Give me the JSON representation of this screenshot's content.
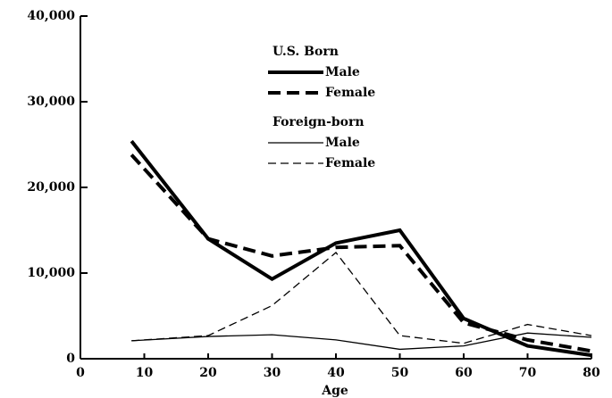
{
  "chart_data": {
    "type": "line",
    "x_label": "Age",
    "x": [
      8,
      20,
      30,
      40,
      50,
      60,
      70,
      80
    ],
    "legend_groups": [
      "U.S. Born",
      "Foreign-born"
    ],
    "series": [
      {
        "name": "Male",
        "group": 0,
        "color": "#000000",
        "width": 4,
        "dash": "none",
        "values": [
          25400,
          14000,
          9300,
          13500,
          15000,
          4700,
          1500,
          400
        ]
      },
      {
        "name": "Female",
        "group": 0,
        "color": "#000000",
        "width": 4,
        "dash": "14 7",
        "values": [
          23800,
          14000,
          12000,
          13000,
          13200,
          4200,
          2200,
          900
        ]
      },
      {
        "name": "Male",
        "group": 1,
        "color": "#000000",
        "width": 1.3,
        "dash": "none",
        "values": [
          2100,
          2600,
          2800,
          2200,
          1100,
          1500,
          3000,
          2500
        ]
      },
      {
        "name": "Female",
        "group": 1,
        "color": "#000000",
        "width": 1.3,
        "dash": "9 5",
        "values": [
          2100,
          2700,
          6200,
          12400,
          2700,
          1800,
          4000,
          2700
        ]
      }
    ],
    "xlim": [
      0,
      80
    ],
    "xticks": [
      0,
      10,
      20,
      30,
      40,
      50,
      60,
      70,
      80
    ],
    "ylim": [
      0,
      40000
    ],
    "yticks": [
      0,
      {
        "value": 10000,
        "label": "10,000"
      },
      {
        "value": 20000,
        "label": "20,000"
      },
      {
        "value": 30000,
        "label": "30,000"
      },
      {
        "value": 40000,
        "label": "40,000"
      }
    ]
  }
}
